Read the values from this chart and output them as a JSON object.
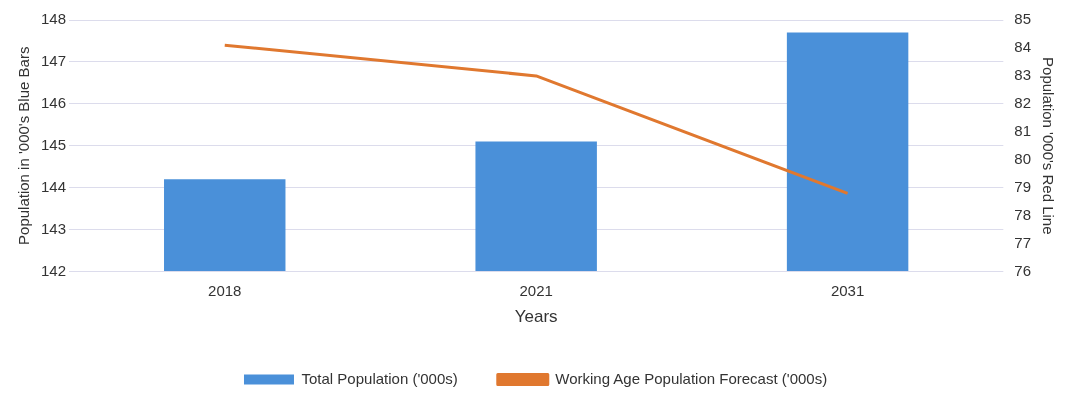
{
  "chart_data": {
    "type": "bar",
    "categories": [
      "2018",
      "2021",
      "2031"
    ],
    "xlabel": "Years",
    "ylabel": "Population in '000's Blue Bars",
    "y2label": "Population '000's Red Line",
    "series": [
      {
        "name": "Total Population ('000s)",
        "color": "#4a90d9",
        "values": [
          144.2,
          145.1,
          147.7
        ]
      },
      {
        "name": "Working Age Population Forecast ('000s)",
        "type": "line",
        "axis": "y2",
        "color": "#e0782f",
        "values": [
          84.1,
          83.0,
          78.8
        ]
      }
    ],
    "ylim": [
      142,
      148
    ],
    "yticks": [
      142,
      143,
      144,
      145,
      146,
      147,
      148
    ],
    "y2lim": [
      76,
      85
    ],
    "y2ticks": [
      76,
      77,
      78,
      79,
      80,
      81,
      82,
      83,
      84,
      85
    ],
    "grid": "y",
    "legend": "bottom",
    "marker": "none"
  }
}
